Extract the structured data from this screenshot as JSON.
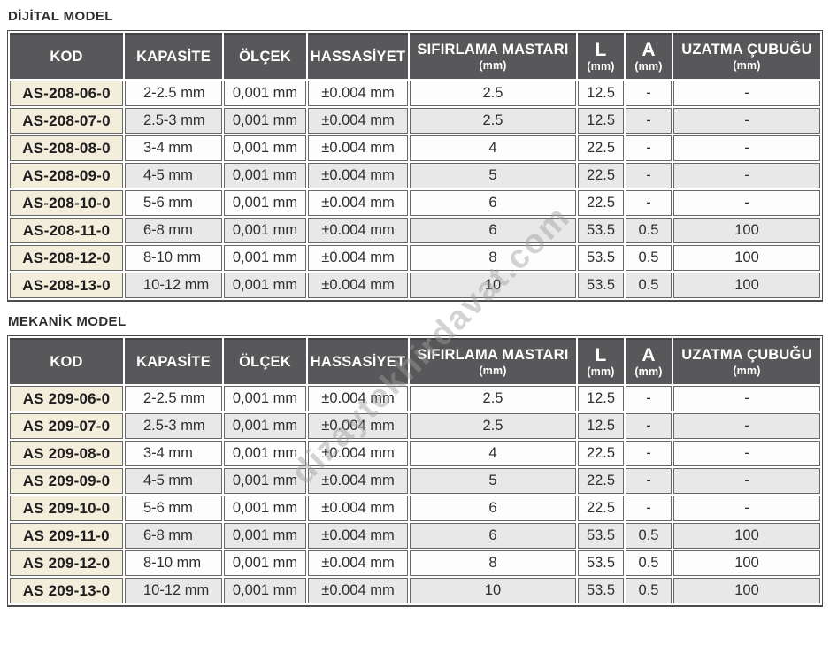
{
  "watermark": {
    "text": "dizaytekhirdavat.com"
  },
  "tables": [
    {
      "title": "DİJİTAL MODEL",
      "columns": [
        {
          "key": "kod",
          "label": "KOD",
          "sub": ""
        },
        {
          "key": "kapasite",
          "label": "KAPASİTE",
          "sub": ""
        },
        {
          "key": "olcek",
          "label": "ÖLÇEK",
          "sub": ""
        },
        {
          "key": "hassasiyet",
          "label": "HASSASİYET",
          "sub": ""
        },
        {
          "key": "sifirlama-mastari",
          "label": "SIFIRLAMA MASTARI",
          "sub": "(mm)"
        },
        {
          "key": "l",
          "label": "L",
          "sub": "(mm)"
        },
        {
          "key": "a",
          "label": "A",
          "sub": "(mm)"
        },
        {
          "key": "uzatma-cubugu",
          "label": "UZATMA ÇUBUĞU",
          "sub": "(mm)"
        }
      ],
      "rows": [
        [
          "AS-208-06-0",
          "2-2.5 mm",
          "0,001 mm",
          "±0.004 mm",
          "2.5",
          "12.5",
          "-",
          "-"
        ],
        [
          "AS-208-07-0",
          "2.5-3 mm",
          "0,001 mm",
          "±0.004 mm",
          "2.5",
          "12.5",
          "-",
          "-"
        ],
        [
          "AS-208-08-0",
          "3-4 mm",
          "0,001 mm",
          "±0.004 mm",
          "4",
          "22.5",
          "-",
          "-"
        ],
        [
          "AS-208-09-0",
          "4-5 mm",
          "0,001 mm",
          "±0.004 mm",
          "5",
          "22.5",
          "-",
          "-"
        ],
        [
          "AS-208-10-0",
          "5-6 mm",
          "0,001 mm",
          "±0.004 mm",
          "6",
          "22.5",
          "-",
          "-"
        ],
        [
          "AS-208-11-0",
          "6-8 mm",
          "0,001 mm",
          "±0.004 mm",
          "6",
          "53.5",
          "0.5",
          "100"
        ],
        [
          "AS-208-12-0",
          "8-10 mm",
          "0,001 mm",
          "±0.004 mm",
          "8",
          "53.5",
          "0.5",
          "100"
        ],
        [
          "AS-208-13-0",
          "10-12 mm",
          "0,001 mm",
          "±0.004 mm",
          "10",
          "53.5",
          "0.5",
          "100"
        ]
      ]
    },
    {
      "title": "MEKANİK MODEL",
      "columns": [
        {
          "key": "kod",
          "label": "KOD",
          "sub": ""
        },
        {
          "key": "kapasite",
          "label": "KAPASİTE",
          "sub": ""
        },
        {
          "key": "olcek",
          "label": "ÖLÇEK",
          "sub": ""
        },
        {
          "key": "hassasiyet",
          "label": "HASSASİYET",
          "sub": ""
        },
        {
          "key": "sifirlama-mastari",
          "label": "SIFIRLAMA MASTARI",
          "sub": "(mm)"
        },
        {
          "key": "l",
          "label": "L",
          "sub": "(mm)"
        },
        {
          "key": "a",
          "label": "A",
          "sub": "(mm)"
        },
        {
          "key": "uzatma-cubugu",
          "label": "UZATMA ÇUBUĞU",
          "sub": "(mm)"
        }
      ],
      "rows": [
        [
          "AS 209-06-0",
          "2-2.5 mm",
          "0,001 mm",
          "±0.004 mm",
          "2.5",
          "12.5",
          "-",
          "-"
        ],
        [
          "AS 209-07-0",
          "2.5-3 mm",
          "0,001 mm",
          "±0.004 mm",
          "2.5",
          "12.5",
          "-",
          "-"
        ],
        [
          "AS 209-08-0",
          "3-4 mm",
          "0,001 mm",
          "±0.004 mm",
          "4",
          "22.5",
          "-",
          "-"
        ],
        [
          "AS 209-09-0",
          "4-5 mm",
          "0,001 mm",
          "±0.004 mm",
          "5",
          "22.5",
          "-",
          "-"
        ],
        [
          "AS 209-10-0",
          "5-6 mm",
          "0,001 mm",
          "±0.004 mm",
          "6",
          "22.5",
          "-",
          "-"
        ],
        [
          "AS 209-11-0",
          "6-8 mm",
          "0,001 mm",
          "±0.004 mm",
          "6",
          "53.5",
          "0.5",
          "100"
        ],
        [
          "AS 209-12-0",
          "8-10 mm",
          "0,001 mm",
          "±0.004 mm",
          "8",
          "53.5",
          "0.5",
          "100"
        ],
        [
          "AS 209-13-0",
          "10-12 mm",
          "0,001 mm",
          "±0.004 mm",
          "10",
          "53.5",
          "0.5",
          "100"
        ]
      ]
    }
  ]
}
